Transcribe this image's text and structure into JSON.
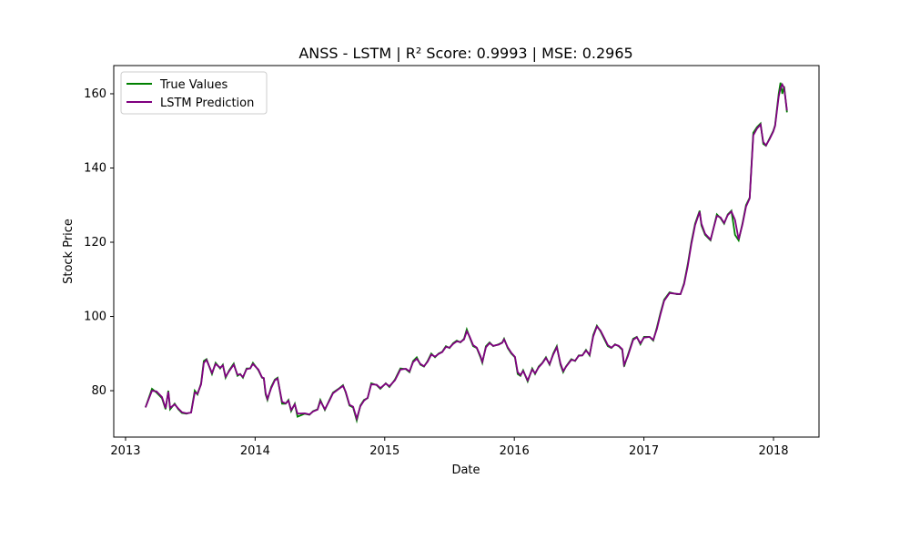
{
  "chart_data": {
    "type": "line",
    "title": "ANSS - LSTM | R² Score: 0.9993 | MSE: 0.2965",
    "xlabel": "Date",
    "ylabel": "Stock Price",
    "x": [
      2013.154,
      2013.204,
      2013.239,
      2013.281,
      2013.309,
      2013.33,
      2013.344,
      2013.379,
      2013.407,
      2013.435,
      2013.47,
      2013.506,
      2013.534,
      2013.555,
      2013.583,
      2013.604,
      2013.625,
      2013.667,
      2013.695,
      2013.73,
      2013.751,
      2013.772,
      2013.8,
      2013.835,
      2013.864,
      2013.885,
      2013.906,
      2013.934,
      2013.962,
      2013.983,
      2014.025,
      2014.053,
      2014.067,
      2014.081,
      2014.095,
      2014.124,
      2014.152,
      2014.173,
      2014.208,
      2014.236,
      2014.257,
      2014.278,
      2014.306,
      2014.327,
      2014.383,
      2014.419,
      2014.447,
      2014.482,
      2014.503,
      2014.538,
      2014.573,
      2014.601,
      2014.643,
      2014.678,
      2014.699,
      2014.728,
      2014.756,
      2014.784,
      2014.812,
      2014.84,
      2014.868,
      2014.896,
      2014.938,
      2014.966,
      2015.008,
      2015.036,
      2015.079,
      2015.121,
      2015.163,
      2015.191,
      2015.219,
      2015.247,
      2015.275,
      2015.303,
      2015.331,
      2015.359,
      2015.388,
      2015.416,
      2015.444,
      2015.472,
      2015.5,
      2015.528,
      2015.556,
      2015.584,
      2015.612,
      2015.633,
      2015.654,
      2015.682,
      2015.71,
      2015.739,
      2015.753,
      2015.781,
      2015.809,
      2015.837,
      2015.879,
      2015.907,
      2015.921,
      2015.949,
      2015.977,
      2016.005,
      2016.026,
      2016.047,
      2016.068,
      2016.103,
      2016.138,
      2016.16,
      2016.188,
      2016.216,
      2016.244,
      2016.272,
      2016.3,
      2016.328,
      2016.356,
      2016.377,
      2016.398,
      2016.44,
      2016.469,
      2016.497,
      2016.525,
      2016.553,
      2016.581,
      2016.609,
      2016.637,
      2016.665,
      2016.693,
      2016.721,
      2016.749,
      2016.777,
      2016.805,
      2016.833,
      2016.847,
      2016.875,
      2016.917,
      2016.945,
      2016.973,
      2017.001,
      2017.044,
      2017.072,
      2017.1,
      2017.128,
      2017.156,
      2017.198,
      2017.254,
      2017.282,
      2017.31,
      2017.338,
      2017.366,
      2017.395,
      2017.43,
      2017.444,
      2017.472,
      2017.514,
      2017.563,
      2017.591,
      2017.619,
      2017.647,
      2017.675,
      2017.703,
      2017.731,
      2017.76,
      2017.788,
      2017.816,
      2017.844,
      2017.872,
      2017.9,
      2017.921,
      2017.942,
      2017.97,
      2017.998,
      2018.012,
      2018.04,
      2018.054,
      2018.068,
      2018.082,
      2018.104
    ],
    "series": [
      {
        "name": "True Values",
        "color": "#008000",
        "values": [
          75.5,
          80.5,
          79.5,
          78,
          75,
          80,
          75,
          76.5,
          75,
          74,
          73.8,
          74.2,
          80,
          79,
          82,
          88,
          88.5,
          84.5,
          87.5,
          86,
          87,
          83.5,
          85.5,
          87.3,
          84,
          84.5,
          83.5,
          86,
          86,
          87.5,
          85.5,
          83.5,
          83.3,
          79,
          77.5,
          81,
          83,
          83.5,
          76.5,
          76.5,
          77.5,
          74.5,
          76.5,
          73,
          73.8,
          73.5,
          74.5,
          75,
          77.5,
          74.8,
          77.5,
          79.5,
          80.5,
          81.5,
          79.5,
          76,
          75.5,
          72,
          76,
          77.5,
          78,
          82,
          81.5,
          80.5,
          82,
          81,
          83,
          86,
          85.8,
          85,
          88,
          89,
          87,
          86.5,
          88,
          90,
          89,
          90,
          90.5,
          92,
          91.5,
          92.8,
          93.5,
          93,
          94,
          96.5,
          94.5,
          92,
          91.5,
          89,
          87.5,
          92,
          93,
          92,
          92.5,
          93,
          94,
          91.5,
          90,
          89,
          84.5,
          84,
          85.5,
          82.5,
          86,
          84.5,
          86.5,
          87.5,
          89,
          87,
          90,
          92,
          87,
          85,
          86.5,
          88.5,
          88,
          89.5,
          89.5,
          91,
          89.5,
          95,
          97.5,
          96,
          94,
          92,
          91.5,
          92.5,
          92,
          91,
          86.5,
          89.5,
          94,
          94.5,
          92.5,
          94.5,
          94.5,
          93.5,
          97,
          101,
          104.5,
          106.5,
          106,
          106,
          109,
          114,
          120,
          125,
          128.5,
          124.5,
          122,
          120.5,
          127.5,
          126.5,
          125,
          127.5,
          128.5,
          122,
          120.5,
          125,
          130,
          132,
          149.5,
          151,
          152,
          146.5,
          146,
          148,
          150,
          151.5,
          160,
          163,
          160,
          162,
          155
        ]
      },
      {
        "name": "LSTM Prediction",
        "color": "#800080",
        "values": [
          75.5,
          80,
          79.8,
          78.3,
          75.3,
          79.7,
          75.4,
          76.3,
          75.2,
          74.2,
          73.9,
          74.1,
          79.5,
          79.2,
          81.7,
          87.5,
          88.3,
          84.8,
          87.2,
          86.2,
          86.8,
          83.8,
          85.3,
          87,
          84.3,
          84.4,
          83.7,
          85.8,
          86,
          87.2,
          85.7,
          83.6,
          83.4,
          79.4,
          77.8,
          80.7,
          82.8,
          83.3,
          77,
          76.6,
          77.3,
          74.8,
          76.3,
          73.8,
          73.9,
          73.6,
          74.4,
          74.9,
          77.2,
          75,
          77.3,
          79.3,
          80.4,
          81.3,
          79.7,
          76.2,
          75.7,
          72.5,
          75.8,
          77.3,
          78.1,
          81.7,
          81.6,
          80.7,
          81.9,
          81.2,
          82.8,
          85.7,
          85.9,
          85.2,
          87.7,
          88.6,
          87.2,
          86.6,
          87.8,
          89.7,
          89.2,
          89.9,
          90.4,
          91.8,
          91.6,
          92.6,
          93.3,
          93.1,
          93.8,
          96,
          94.7,
          92.3,
          91.6,
          89.3,
          87.8,
          91.7,
          92.8,
          92.1,
          92.4,
          92.9,
          93.8,
          91.7,
          90.2,
          89.1,
          85,
          84.2,
          85.3,
          82.8,
          85.7,
          84.7,
          86.3,
          87.4,
          88.8,
          87.2,
          89.7,
          91.7,
          87.4,
          85.3,
          86.4,
          88.3,
          88.1,
          89.4,
          89.5,
          90.8,
          89.7,
          94.6,
          97.3,
          96.2,
          94.3,
          92.3,
          91.6,
          92.4,
          92.1,
          91.2,
          87,
          89.2,
          93.7,
          94.4,
          92.8,
          94.3,
          94.5,
          93.7,
          96.6,
          100.6,
          104.2,
          106.3,
          106.1,
          106,
          108.7,
          113.5,
          119.5,
          124.6,
          128.2,
          125,
          122.3,
          120.7,
          127.1,
          126.7,
          125.2,
          127.3,
          128.3,
          126,
          120.8,
          124.7,
          129.6,
          131.8,
          148.8,
          150.6,
          151.7,
          147,
          146.1,
          147.8,
          149.8,
          151.3,
          159.2,
          161.5,
          162.5,
          161.5,
          155.5
        ]
      }
    ],
    "xlim": [
      2012.909,
      2018.351
    ],
    "xticks": [
      2013,
      2014,
      2015,
      2016,
      2017,
      2018
    ],
    "ylim": [
      67.5,
      167.6
    ],
    "yticks": [
      80,
      100,
      120,
      140,
      160
    ],
    "legend": "upper left"
  }
}
